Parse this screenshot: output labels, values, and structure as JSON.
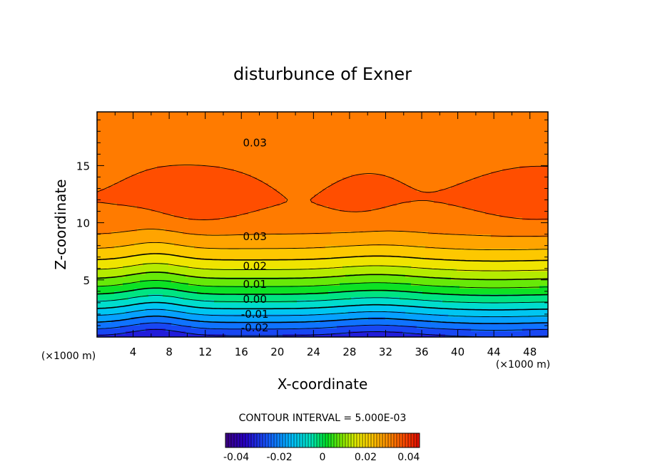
{
  "chart_data": {
    "type": "contour",
    "title": "disturbunce of Exner",
    "xlabel": "X-coordinate",
    "ylabel": "Z-coordinate",
    "x_unit_label": "(×1000 m)",
    "x_unit_label_right": "(×1000 m)",
    "xlim": [
      0,
      50
    ],
    "ylim": [
      0,
      19.7
    ],
    "x_ticks": [
      4,
      8,
      12,
      16,
      20,
      24,
      28,
      32,
      36,
      40,
      44,
      48
    ],
    "x_tick_labels": [
      "4",
      "8",
      "12",
      "16",
      "20",
      "24",
      "28",
      "32",
      "36",
      "40",
      "44",
      "48"
    ],
    "y_ticks": [
      5,
      10,
      15
    ],
    "y_tick_labels": [
      "5",
      "10",
      "15"
    ],
    "contour_interval_text": "CONTOUR INTERVAL = 5.000E-03",
    "contour_interval": 0.005,
    "value_range": [
      -0.045,
      0.045
    ],
    "negative_contours_dashed": true,
    "contour_labels": [
      {
        "text": "0.03",
        "x": 17.5,
        "z": 17.0
      },
      {
        "text": "0.03",
        "x": 17.5,
        "z": 8.8
      },
      {
        "text": "0.02",
        "x": 17.5,
        "z": 6.2
      },
      {
        "text": "0.01",
        "x": 17.5,
        "z": 4.6
      },
      {
        "text": "0.00",
        "x": 17.5,
        "z": 3.3
      },
      {
        "text": "-0.01",
        "x": 17.5,
        "z": 2.0
      },
      {
        "text": "-0.02",
        "x": 17.5,
        "z": 0.8
      }
    ],
    "colorbar": {
      "tick_labels": [
        "-0.04",
        "-0.02",
        "0",
        "0.02",
        "0.04"
      ],
      "tick_values": [
        -0.04,
        -0.02,
        0,
        0.02,
        0.04
      ],
      "range": [
        -0.045,
        0.045
      ]
    },
    "field_description": "Exner pressure disturbance increasing with height from about -0.03 near the surface to a maximum above 0.035 near z = 12, decreasing above; weak horizontal undulations with peaks near x = 6 and x = 31; closed maximum near x = 12, z = 12."
  },
  "colors": {
    "background": "#ffffff",
    "axis": "#000000",
    "contour_line": "#000000"
  }
}
